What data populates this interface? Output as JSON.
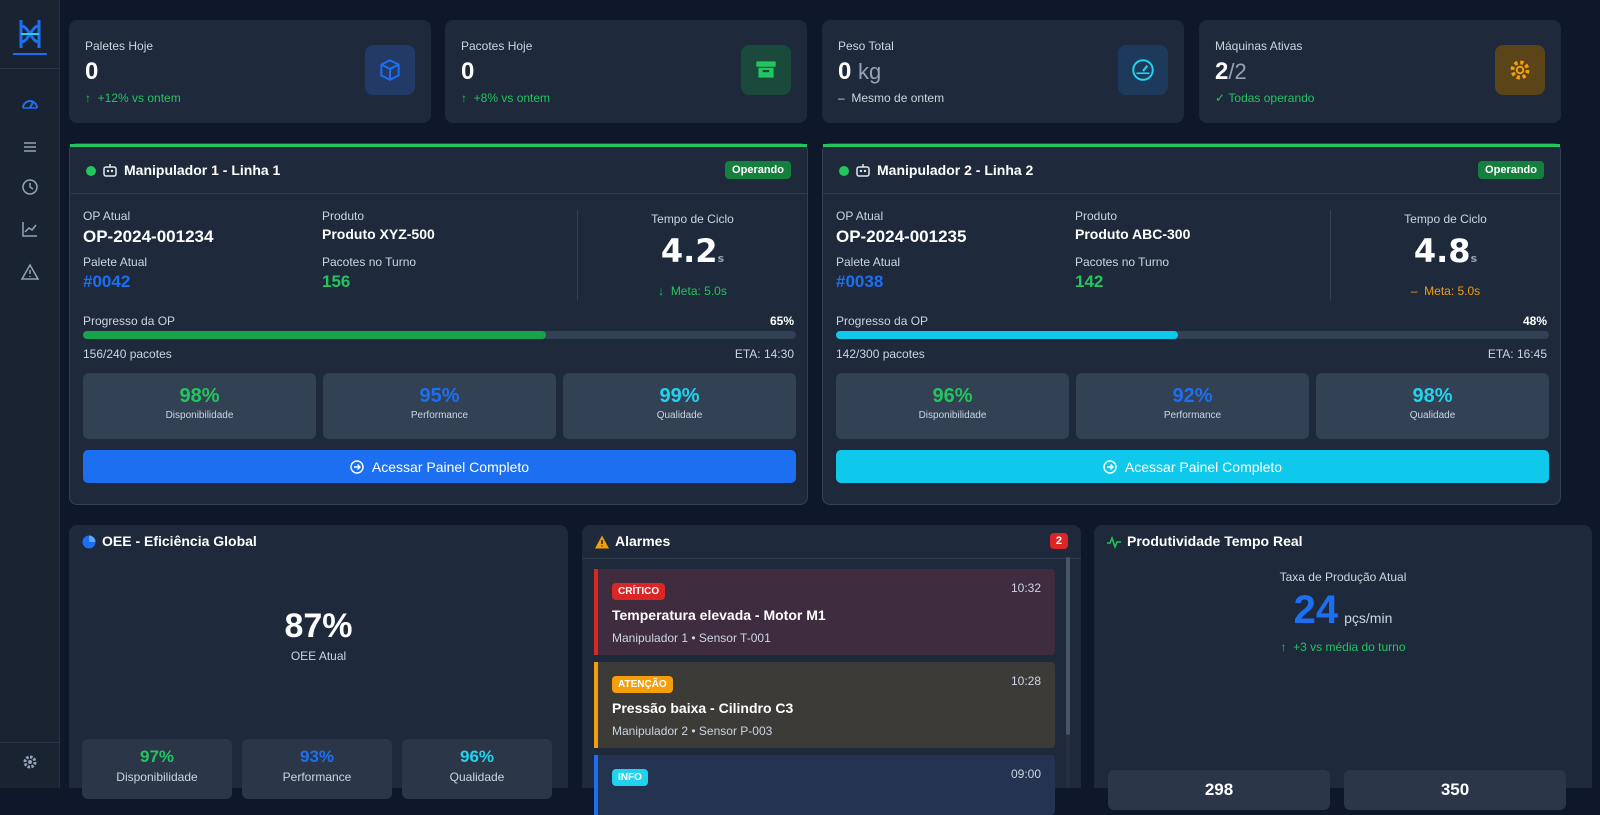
{
  "sidebar": {
    "nav": [
      "dashboard-icon",
      "list-icon",
      "history-icon",
      "chart-icon",
      "alert-icon"
    ],
    "settings": "gear-icon"
  },
  "stats": [
    {
      "label": "Paletes Hoje",
      "value": "0",
      "unit": "",
      "sub": "+12% vs ontem",
      "sub_arrow": "↑",
      "icon": "box-icon",
      "accent": "#1d6ff2"
    },
    {
      "label": "Pacotes Hoje",
      "value": "0",
      "unit": "",
      "sub": "+8% vs ontem",
      "sub_arrow": "↑",
      "icon": "archive-icon",
      "accent": "#22c55e"
    },
    {
      "label": "Peso Total",
      "value": "0",
      "unit": "kg",
      "sub": "Mesmo de ontem",
      "sub_arrow": "–",
      "icon": "gauge-icon",
      "accent": "#22d3ee"
    },
    {
      "label": "Máquinas Ativas",
      "value": "2",
      "unit": "/2",
      "sub": "Todas operando",
      "sub_arrow": "✓",
      "icon": "gear-icon",
      "accent": "#f59e0b"
    }
  ],
  "machines": [
    {
      "title": "Manipulador 1 - Linha 1",
      "status": "Operando",
      "op_label": "OP Atual",
      "op": "OP-2024-001234",
      "product_label": "Produto",
      "product": "Produto XYZ-500",
      "pallet_label": "Palete Atual",
      "pallet": "#0042",
      "packs_label": "Pacotes no Turno",
      "packs": "156",
      "cycle_label": "Tempo de Ciclo",
      "cycle": "4.2",
      "cycle_unit": "s",
      "meta": "Meta: 5.0s",
      "meta_arrow": "↓",
      "progress_label": "Progresso da OP",
      "progress_pct": "65%",
      "progress": 0.65,
      "progress_sub": "156/240 pacotes",
      "eta": "ETA: 14:30",
      "kpis": [
        {
          "value": "98%",
          "label": "Disponibilidade"
        },
        {
          "value": "95%",
          "label": "Performance"
        },
        {
          "value": "99%",
          "label": "Qualidade"
        }
      ],
      "button": "Acessar Painel Completo",
      "accent": "#1d6ff2"
    },
    {
      "title": "Manipulador 2 - Linha 2",
      "status": "Operando",
      "op_label": "OP Atual",
      "op": "OP-2024-001235",
      "product_label": "Produto",
      "product": "Produto ABC-300",
      "pallet_label": "Palete Atual",
      "pallet": "#0038",
      "packs_label": "Pacotes no Turno",
      "packs": "142",
      "cycle_label": "Tempo de Ciclo",
      "cycle": "4.8",
      "cycle_unit": "s",
      "meta": "Meta: 5.0s",
      "meta_arrow": "–",
      "progress_label": "Progresso da OP",
      "progress_pct": "48%",
      "progress": 0.48,
      "progress_sub": "142/300 pacotes",
      "eta": "ETA: 16:45",
      "kpis": [
        {
          "value": "96%",
          "label": "Disponibilidade"
        },
        {
          "value": "92%",
          "label": "Performance"
        },
        {
          "value": "98%",
          "label": "Qualidade"
        }
      ],
      "button": "Acessar Painel Completo",
      "accent": "#0ec9ec"
    }
  ],
  "oee": {
    "title": "OEE - Eficiência Global",
    "value": "87%",
    "label": "OEE Atual",
    "kpis": [
      {
        "value": "97%",
        "label": "Disponibilidade"
      },
      {
        "value": "93%",
        "label": "Performance"
      },
      {
        "value": "96%",
        "label": "Qualidade"
      }
    ]
  },
  "alarms": {
    "title": "Alarmes",
    "count": "2",
    "items": [
      {
        "tag": "CRÍTICO",
        "time": "10:32",
        "title": "Temperatura elevada - Motor M1",
        "source": "Manipulador 1 • Sensor T-001",
        "color": "#dc2626"
      },
      {
        "tag": "ATENÇÃO",
        "time": "10:28",
        "title": "Pressão baixa - Cilindro C3",
        "source": "Manipulador 2 • Sensor P-003",
        "color": "#f59e0b"
      },
      {
        "tag": "INFO",
        "time": "09:00",
        "title": "",
        "source": "",
        "color": "#22d3ee"
      }
    ]
  },
  "productivity": {
    "title": "Produtividade Tempo Real",
    "rate_label": "Taxa de Produção Atual",
    "rate": "24",
    "unit": "pçs/min",
    "delta": "+3 vs média do turno",
    "delta_arrow": "↑",
    "boxes": [
      "298",
      "350"
    ]
  }
}
